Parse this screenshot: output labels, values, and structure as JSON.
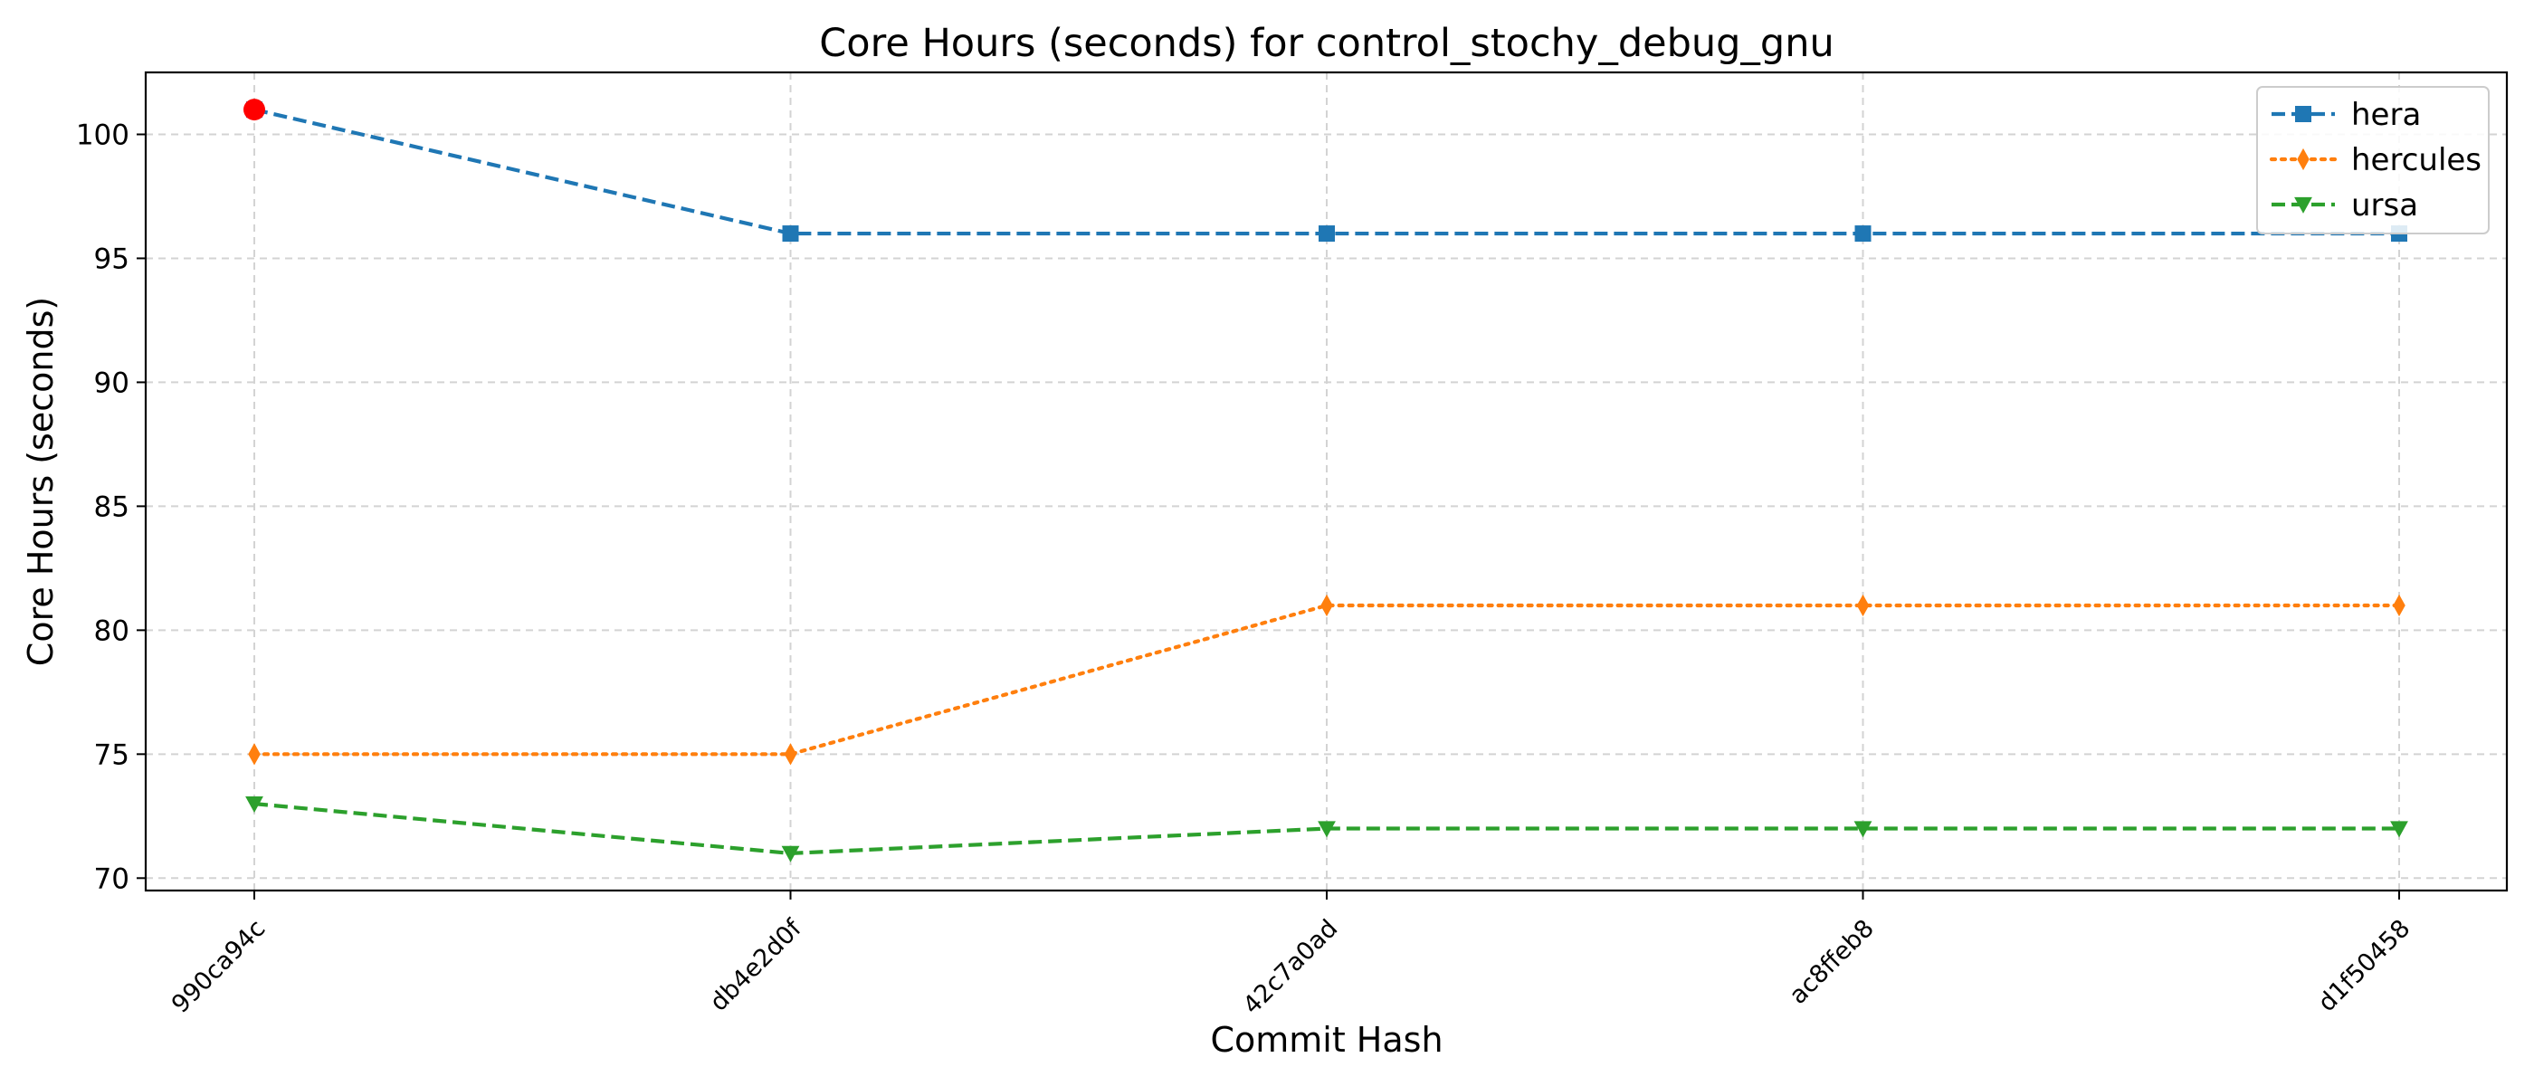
{
  "chart_data": {
    "type": "line",
    "title": "Core Hours (seconds) for control_stochy_debug_gnu",
    "xlabel": "Commit Hash",
    "ylabel": "Core Hours (seconds)",
    "categories": [
      "990ca94c",
      "db4e2d0f",
      "42c7a0ad",
      "ac8ffeb8",
      "d1f50458"
    ],
    "ylim": [
      69.5,
      102.5
    ],
    "yticks": [
      70,
      75,
      80,
      85,
      90,
      95,
      100
    ],
    "grid": true,
    "legend_position": "top-right",
    "series": [
      {
        "name": "hera",
        "values": [
          101,
          96,
          96,
          96,
          96
        ],
        "color": "#1f77b4",
        "linestyle": "dashed",
        "marker": "square"
      },
      {
        "name": "hercules",
        "values": [
          75,
          75,
          81,
          81,
          81
        ],
        "color": "#ff7f0e",
        "linestyle": "dotted",
        "marker": "thin-diamond"
      },
      {
        "name": "ursa",
        "values": [
          73,
          71,
          72,
          72,
          72
        ],
        "color": "#2ca02c",
        "linestyle": "dashed",
        "marker": "triangle-down"
      }
    ],
    "highlight": {
      "series": "hera",
      "index": 0,
      "color": "#ff0000"
    }
  }
}
